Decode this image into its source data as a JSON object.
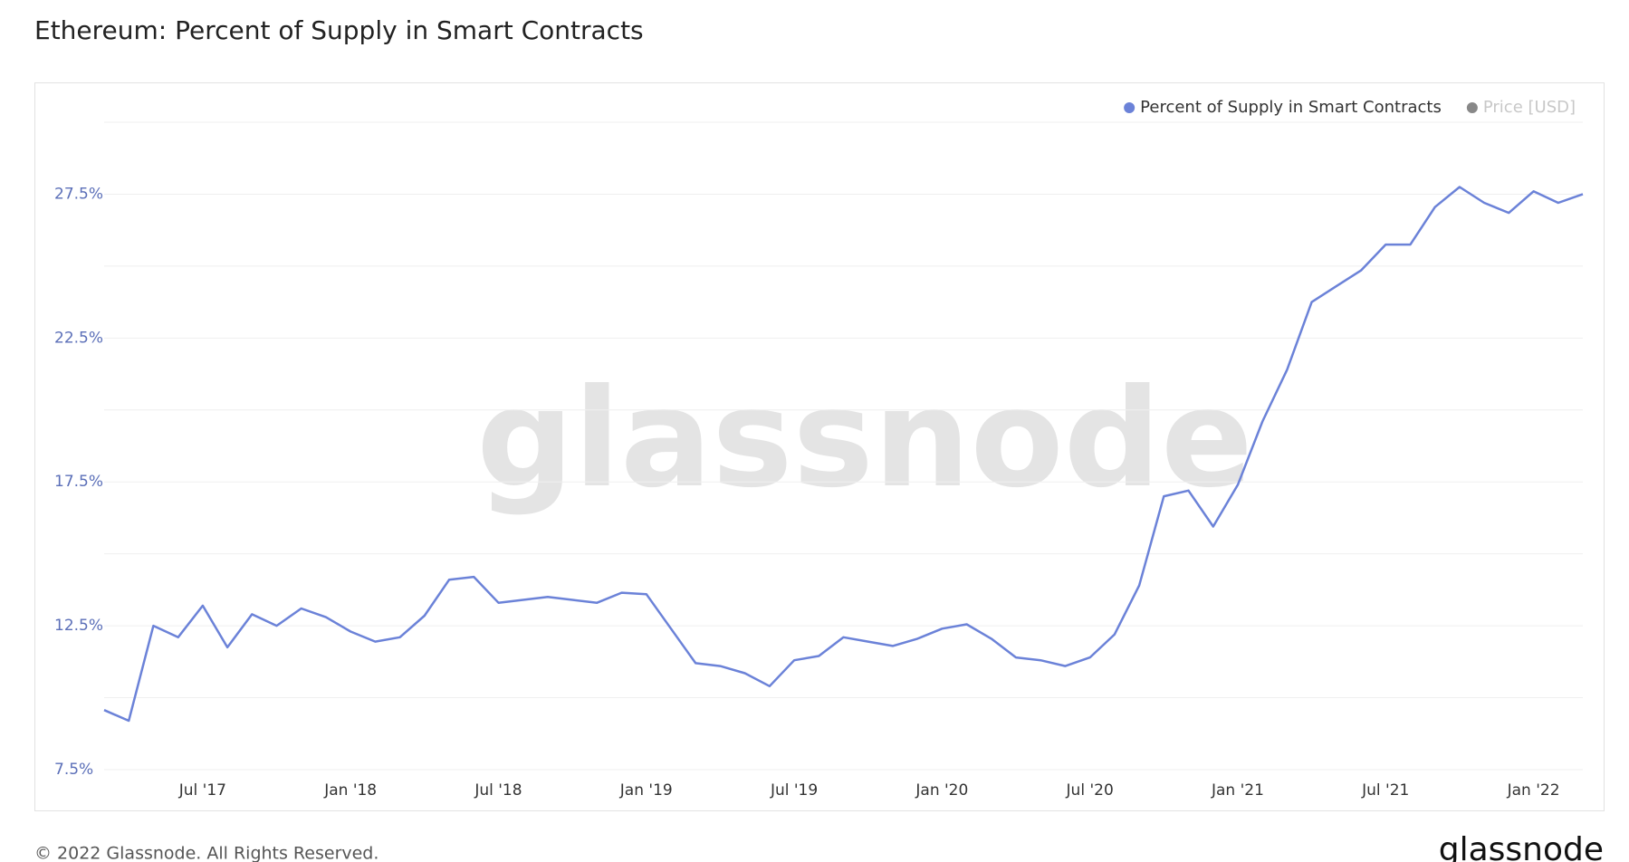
{
  "chart_data": {
    "type": "line",
    "title": "Ethereum: Percent of Supply in Smart Contracts",
    "watermark": "glassnode",
    "footer": "© 2022 Glassnode. All Rights Reserved.",
    "brand": "glassnode",
    "x": [
      "2017-03",
      "2017-04",
      "2017-05",
      "2017-06",
      "2017-07",
      "2017-08",
      "2017-09",
      "2017-10",
      "2017-11",
      "2017-12",
      "2018-01",
      "2018-02",
      "2018-03",
      "2018-04",
      "2018-05",
      "2018-06",
      "2018-07",
      "2018-08",
      "2018-09",
      "2018-10",
      "2018-11",
      "2018-12",
      "2019-01",
      "2019-02",
      "2019-03",
      "2019-04",
      "2019-05",
      "2019-06",
      "2019-07",
      "2019-08",
      "2019-09",
      "2019-10",
      "2019-11",
      "2019-12",
      "2020-01",
      "2020-02",
      "2020-03",
      "2020-04",
      "2020-05",
      "2020-06",
      "2020-07",
      "2020-08",
      "2020-09",
      "2020-10",
      "2020-11",
      "2020-12",
      "2021-01",
      "2021-02",
      "2021-03",
      "2021-04",
      "2021-05",
      "2021-06",
      "2021-07",
      "2021-08",
      "2021-09",
      "2021-10",
      "2021-11",
      "2021-12",
      "2022-01",
      "2022-02",
      "2022-03"
    ],
    "series": [
      {
        "name": "Percent of Supply in Smart Contracts",
        "color": "#6b82d8",
        "values": [
          9.57,
          9.2,
          12.5,
          12.1,
          13.2,
          11.75,
          12.9,
          12.5,
          13.1,
          12.8,
          12.3,
          11.95,
          12.1,
          12.85,
          14.1,
          14.2,
          13.3,
          13.4,
          13.5,
          13.4,
          13.3,
          13.65,
          13.6,
          12.4,
          11.2,
          11.1,
          10.85,
          10.4,
          11.3,
          11.45,
          12.1,
          11.95,
          11.8,
          12.05,
          12.4,
          12.55,
          12.05,
          11.4,
          11.3,
          11.1,
          11.4,
          12.2,
          13.9,
          17.0,
          17.2,
          15.95,
          17.4,
          19.6,
          21.4,
          23.75,
          24.3,
          24.85,
          25.75,
          25.75,
          27.05,
          27.75,
          27.2,
          26.85,
          27.6,
          27.2,
          27.5
        ]
      },
      {
        "name": "Price [USD]",
        "color": "#888888",
        "hidden": true
      }
    ],
    "xlim": [
      "2017-03",
      "2022-03"
    ],
    "xticks": [
      {
        "value": "2017-07",
        "label": "Jul '17"
      },
      {
        "value": "2018-01",
        "label": "Jan '18"
      },
      {
        "value": "2018-07",
        "label": "Jul '18"
      },
      {
        "value": "2019-01",
        "label": "Jan '19"
      },
      {
        "value": "2019-07",
        "label": "Jul '19"
      },
      {
        "value": "2020-01",
        "label": "Jan '20"
      },
      {
        "value": "2020-07",
        "label": "Jul '20"
      },
      {
        "value": "2021-01",
        "label": "Jan '21"
      },
      {
        "value": "2021-07",
        "label": "Jul '21"
      },
      {
        "value": "2022-01",
        "label": "Jan '22"
      }
    ],
    "ylim": [
      7.5,
      30
    ],
    "yticks": [
      {
        "value": 7.5,
        "label": "7.5%"
      },
      {
        "value": 12.5,
        "label": "12.5%"
      },
      {
        "value": 17.5,
        "label": "17.5%"
      },
      {
        "value": 22.5,
        "label": "22.5%"
      },
      {
        "value": 27.5,
        "label": "27.5%"
      }
    ],
    "ygrid": [
      7.5,
      10,
      12.5,
      15,
      17.5,
      20,
      22.5,
      25,
      27.5,
      30
    ],
    "legend": "top-right"
  }
}
